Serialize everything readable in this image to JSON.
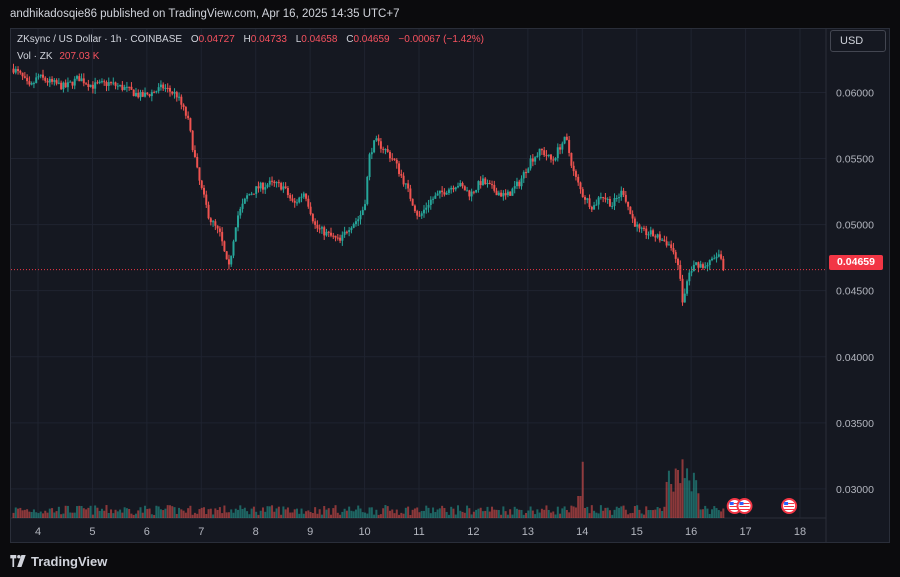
{
  "publisher_line": "andhikadosqie86 published on TradingView.com, Apr 16, 2025 14:35 UTC+7",
  "legend": {
    "symbol": "ZKsync / US Dollar · 1h · COINBASE",
    "o_label": "O",
    "o": "0.04727",
    "h_label": "H",
    "h": "0.04733",
    "l_label": "L",
    "l": "0.04658",
    "c_label": "C",
    "c": "0.04659",
    "change": "−0.00067 (−1.42%)"
  },
  "volume": {
    "label": "Vol · ZK",
    "value": "207.03 K"
  },
  "currency_button": "USD",
  "last_price": "0.04659",
  "footer_brand": "TradingView",
  "colors": {
    "up": "#26a69a",
    "down": "#ef5350",
    "bg": "#151821",
    "price_line": "#f23645"
  },
  "event_icons": [
    "us-flag-icon",
    "us-flag-icon",
    "us-flag-icon"
  ],
  "chart_data": {
    "type": "candlestick",
    "ylim": [
      0.0278,
      0.0648
    ],
    "y_ticks": [
      "0.06000",
      "0.05500",
      "0.05000",
      "0.04500",
      "0.04000",
      "0.03500",
      "0.03000"
    ],
    "y_tick_values": [
      0.06,
      0.055,
      0.05,
      0.045,
      0.04,
      0.035,
      0.03
    ],
    "x_ticks": [
      "4",
      "5",
      "6",
      "7",
      "8",
      "9",
      "10",
      "11",
      "12",
      "13",
      "14",
      "15",
      "16",
      "17",
      "18"
    ],
    "x_tick_days": [
      4,
      5,
      6,
      7,
      8,
      9,
      10,
      11,
      12,
      13,
      14,
      15,
      16,
      17,
      18
    ],
    "last_close": 0.04659,
    "close_path": [
      [
        3.55,
        0.0618
      ],
      [
        3.7,
        0.0612
      ],
      [
        3.85,
        0.0603
      ],
      [
        4.0,
        0.0612
      ],
      [
        4.2,
        0.0608
      ],
      [
        4.5,
        0.0604
      ],
      [
        4.75,
        0.0611
      ],
      [
        5.0,
        0.0605
      ],
      [
        5.3,
        0.0607
      ],
      [
        5.6,
        0.0603
      ],
      [
        5.9,
        0.0597
      ],
      [
        6.1,
        0.06
      ],
      [
        6.3,
        0.0604
      ],
      [
        6.55,
        0.0598
      ],
      [
        6.75,
        0.058
      ],
      [
        6.95,
        0.0535
      ],
      [
        7.15,
        0.0505
      ],
      [
        7.35,
        0.0492
      ],
      [
        7.5,
        0.0465
      ],
      [
        7.65,
        0.0505
      ],
      [
        7.85,
        0.0522
      ],
      [
        8.05,
        0.0528
      ],
      [
        8.25,
        0.0531
      ],
      [
        8.5,
        0.0529
      ],
      [
        8.7,
        0.0515
      ],
      [
        8.9,
        0.0525
      ],
      [
        9.1,
        0.0498
      ],
      [
        9.35,
        0.0492
      ],
      [
        9.55,
        0.0487
      ],
      [
        9.7,
        0.0498
      ],
      [
        9.9,
        0.0505
      ],
      [
        10.0,
        0.0515
      ],
      [
        10.1,
        0.0555
      ],
      [
        10.2,
        0.0563
      ],
      [
        10.35,
        0.0558
      ],
      [
        10.55,
        0.0548
      ],
      [
        10.75,
        0.053
      ],
      [
        10.9,
        0.0515
      ],
      [
        11.0,
        0.0505
      ],
      [
        11.2,
        0.0518
      ],
      [
        11.45,
        0.0525
      ],
      [
        11.7,
        0.0531
      ],
      [
        11.95,
        0.0523
      ],
      [
        12.15,
        0.0533
      ],
      [
        12.35,
        0.0527
      ],
      [
        12.6,
        0.0521
      ],
      [
        12.85,
        0.0532
      ],
      [
        13.05,
        0.0549
      ],
      [
        13.25,
        0.0556
      ],
      [
        13.45,
        0.0548
      ],
      [
        13.6,
        0.056
      ],
      [
        13.7,
        0.0565
      ],
      [
        13.85,
        0.0538
      ],
      [
        14.0,
        0.0523
      ],
      [
        14.2,
        0.0513
      ],
      [
        14.35,
        0.0523
      ],
      [
        14.55,
        0.0515
      ],
      [
        14.75,
        0.0526
      ],
      [
        14.9,
        0.0506
      ],
      [
        15.05,
        0.0495
      ],
      [
        15.25,
        0.0493
      ],
      [
        15.45,
        0.0489
      ],
      [
        15.6,
        0.0485
      ],
      [
        15.75,
        0.0474
      ],
      [
        15.85,
        0.044
      ],
      [
        15.95,
        0.0462
      ],
      [
        16.1,
        0.0471
      ],
      [
        16.25,
        0.0468
      ],
      [
        16.4,
        0.0473
      ],
      [
        16.5,
        0.0478
      ],
      [
        16.6,
        0.0466
      ]
    ],
    "volume_spikes": [
      [
        14.0,
        0.23
      ],
      [
        15.85,
        0.24
      ],
      [
        15.9,
        0.12
      ],
      [
        13.95,
        0.09
      ]
    ]
  }
}
